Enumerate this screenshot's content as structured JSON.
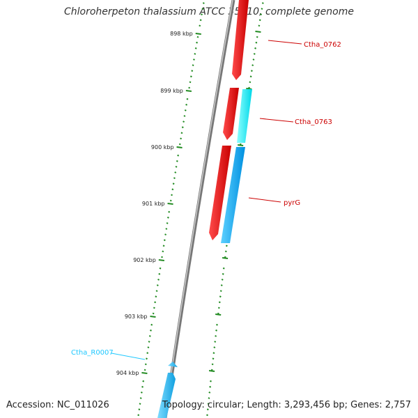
{
  "title": "Chloroherpeton thalassium ATCC 35110, complete genome",
  "footer": {
    "accession": "Accession: NC_011026",
    "summary": "Topology: circular; Length: 3,293,456 bp; Genes: 2,757"
  },
  "map": {
    "scale_unit": "kbp",
    "ticks": [
      {
        "value": 898,
        "label": "898 kbp"
      },
      {
        "value": 899,
        "label": "899 kbp"
      },
      {
        "value": 900,
        "label": "900 kbp"
      },
      {
        "value": 901,
        "label": "901 kbp"
      },
      {
        "value": 902,
        "label": "902 kbp"
      },
      {
        "value": 903,
        "label": "903 kbp"
      },
      {
        "value": 904,
        "label": "904 kbp"
      }
    ],
    "features": [
      {
        "label": "Ctha_0762",
        "type": "CDS",
        "strand": "forward",
        "color": "#e8000b"
      },
      {
        "label": "Ctha_0763",
        "type": "CDS",
        "strand": "forward",
        "color": "#e8000b"
      },
      {
        "label": "pyrG",
        "type": "CDS",
        "strand": "forward",
        "color": "#e8000b"
      },
      {
        "label": "Ctha_R0007",
        "type": "RNA",
        "strand": "reverse",
        "color": "#1ec8ff"
      }
    ],
    "colors": {
      "cds": "#e8000b",
      "rna": "#1ec8ff",
      "cyan_feature": "#00ffff",
      "blue_feature": "#10a8f0",
      "backbone": "#888888",
      "ticks": "#228b22"
    }
  }
}
